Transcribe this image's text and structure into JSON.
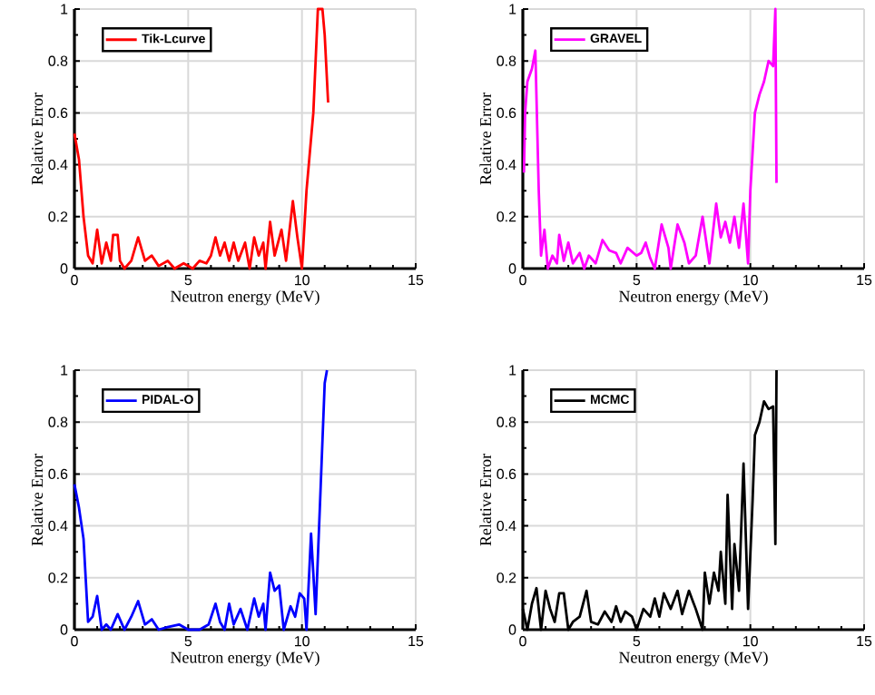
{
  "chart_data": [
    {
      "type": "line",
      "xlabel": "Neutron energy (MeV)",
      "ylabel": "Relative Error",
      "xlim": [
        0,
        15
      ],
      "ylim": [
        0,
        1
      ],
      "xticks": [
        0,
        5,
        10,
        15
      ],
      "yticks": [
        0,
        0.2,
        0.4,
        0.6,
        0.8,
        1
      ],
      "grid": true,
      "legend": "top left",
      "series": [
        {
          "name": "Tik-Lcurve",
          "color": "#ff0000",
          "x": [
            0,
            0.2,
            0.4,
            0.6,
            0.8,
            1.0,
            1.2,
            1.4,
            1.6,
            1.7,
            1.9,
            2.0,
            2.2,
            2.5,
            2.8,
            3.1,
            3.4,
            3.7,
            4.1,
            4.4,
            4.8,
            5.2,
            5.5,
            5.8,
            6.0,
            6.2,
            6.4,
            6.6,
            6.8,
            7.0,
            7.2,
            7.5,
            7.7,
            7.9,
            8.1,
            8.3,
            8.4,
            8.6,
            8.8,
            9.1,
            9.3,
            9.6,
            9.8,
            10.0,
            10.2,
            10.5,
            10.7,
            10.9,
            11.0,
            11.15
          ],
          "values": [
            0.52,
            0.42,
            0.2,
            0.05,
            0.02,
            0.15,
            0.02,
            0.1,
            0.03,
            0.13,
            0.13,
            0.03,
            0.0,
            0.03,
            0.12,
            0.03,
            0.05,
            0.01,
            0.03,
            0.0,
            0.02,
            0.0,
            0.03,
            0.02,
            0.05,
            0.12,
            0.05,
            0.1,
            0.03,
            0.1,
            0.03,
            0.1,
            0.0,
            0.12,
            0.05,
            0.1,
            0.0,
            0.18,
            0.05,
            0.15,
            0.03,
            0.26,
            0.12,
            0.0,
            0.3,
            0.6,
            1.0,
            1.0,
            0.9,
            0.64
          ]
        }
      ]
    },
    {
      "type": "line",
      "xlabel": "Neutron energy (MeV)",
      "ylabel": "Relative Error",
      "xlim": [
        0,
        15
      ],
      "ylim": [
        0,
        1
      ],
      "xticks": [
        0,
        5,
        10,
        15
      ],
      "yticks": [
        0,
        0.2,
        0.4,
        0.6,
        0.8,
        1
      ],
      "grid": true,
      "legend": "top left",
      "series": [
        {
          "name": "GRAVEL",
          "color": "#ff00ff",
          "x": [
            0.05,
            0.1,
            0.2,
            0.4,
            0.55,
            0.7,
            0.8,
            0.95,
            1.1,
            1.3,
            1.5,
            1.6,
            1.8,
            2.0,
            2.2,
            2.5,
            2.7,
            2.9,
            3.2,
            3.5,
            3.8,
            4.1,
            4.3,
            4.6,
            5.0,
            5.2,
            5.4,
            5.6,
            5.8,
            6.1,
            6.4,
            6.5,
            6.8,
            7.1,
            7.3,
            7.6,
            7.9,
            8.2,
            8.5,
            8.7,
            8.9,
            9.1,
            9.3,
            9.5,
            9.7,
            9.9,
            10.0,
            10.2,
            10.4,
            10.6,
            10.8,
            11.0,
            11.1,
            11.15
          ],
          "values": [
            0.37,
            0.6,
            0.72,
            0.77,
            0.84,
            0.3,
            0.05,
            0.15,
            0.0,
            0.05,
            0.02,
            0.13,
            0.03,
            0.1,
            0.02,
            0.06,
            0.0,
            0.05,
            0.02,
            0.11,
            0.07,
            0.06,
            0.02,
            0.08,
            0.05,
            0.06,
            0.1,
            0.04,
            0.0,
            0.17,
            0.08,
            0.0,
            0.17,
            0.1,
            0.02,
            0.05,
            0.2,
            0.02,
            0.25,
            0.12,
            0.18,
            0.1,
            0.2,
            0.08,
            0.25,
            0.02,
            0.3,
            0.6,
            0.67,
            0.72,
            0.8,
            0.78,
            1.0,
            0.33
          ]
        }
      ]
    },
    {
      "type": "line",
      "xlabel": "Neutron energy (MeV)",
      "ylabel": "Relative Error",
      "xlim": [
        0,
        15
      ],
      "ylim": [
        0,
        1
      ],
      "xticks": [
        0,
        5,
        10,
        15
      ],
      "yticks": [
        0,
        0.2,
        0.4,
        0.6,
        0.8,
        1
      ],
      "grid": true,
      "legend": "top left",
      "series": [
        {
          "name": "PIDAL-O",
          "color": "#0000ff",
          "x": [
            0,
            0.2,
            0.4,
            0.6,
            0.8,
            1.0,
            1.2,
            1.4,
            1.6,
            1.9,
            2.2,
            2.5,
            2.8,
            3.1,
            3.4,
            3.7,
            4.1,
            4.6,
            5.0,
            5.5,
            5.9,
            6.2,
            6.4,
            6.6,
            6.8,
            7.0,
            7.3,
            7.6,
            7.9,
            8.1,
            8.3,
            8.4,
            8.6,
            8.8,
            9.0,
            9.2,
            9.5,
            9.7,
            9.9,
            10.1,
            10.2,
            10.4,
            10.6,
            10.8,
            11.0,
            11.1
          ],
          "values": [
            0.56,
            0.47,
            0.35,
            0.03,
            0.05,
            0.13,
            0.0,
            0.02,
            0.0,
            0.06,
            0.0,
            0.05,
            0.11,
            0.02,
            0.04,
            0.0,
            0.01,
            0.02,
            0.0,
            0.0,
            0.02,
            0.1,
            0.03,
            0.0,
            0.1,
            0.02,
            0.08,
            0.0,
            0.12,
            0.05,
            0.1,
            0.0,
            0.22,
            0.15,
            0.17,
            0.0,
            0.09,
            0.05,
            0.14,
            0.12,
            0.0,
            0.37,
            0.06,
            0.5,
            0.95,
            1.0
          ]
        }
      ]
    },
    {
      "type": "line",
      "xlabel": "Neutron energy (MeV)",
      "ylabel": "Relative Error",
      "xlim": [
        0,
        15
      ],
      "ylim": [
        0,
        1
      ],
      "xticks": [
        0,
        5,
        10,
        15
      ],
      "yticks": [
        0,
        0.2,
        0.4,
        0.6,
        0.8,
        1
      ],
      "grid": true,
      "legend": "top left",
      "series": [
        {
          "name": "MCMC",
          "color": "#000000",
          "x": [
            0,
            0.2,
            0.4,
            0.6,
            0.8,
            1.0,
            1.2,
            1.4,
            1.6,
            1.8,
            2.0,
            2.2,
            2.5,
            2.8,
            3.0,
            3.3,
            3.6,
            3.9,
            4.1,
            4.3,
            4.5,
            4.8,
            5.0,
            5.3,
            5.6,
            5.8,
            6.0,
            6.2,
            6.5,
            6.8,
            7.0,
            7.3,
            7.6,
            7.9,
            8.0,
            8.2,
            8.4,
            8.6,
            8.7,
            8.9,
            9.0,
            9.2,
            9.3,
            9.5,
            9.7,
            9.9,
            10.1,
            10.2,
            10.4,
            10.6,
            10.8,
            11.0,
            11.1,
            11.15
          ],
          "values": [
            0.08,
            0.0,
            0.1,
            0.16,
            0.0,
            0.15,
            0.08,
            0.03,
            0.14,
            0.14,
            0.0,
            0.03,
            0.05,
            0.15,
            0.03,
            0.02,
            0.07,
            0.03,
            0.09,
            0.03,
            0.07,
            0.05,
            0.0,
            0.08,
            0.05,
            0.12,
            0.05,
            0.14,
            0.08,
            0.15,
            0.06,
            0.15,
            0.08,
            0.0,
            0.22,
            0.1,
            0.22,
            0.15,
            0.3,
            0.1,
            0.52,
            0.08,
            0.33,
            0.15,
            0.64,
            0.08,
            0.5,
            0.75,
            0.8,
            0.88,
            0.85,
            0.86,
            0.33,
            1.0
          ]
        }
      ]
    }
  ]
}
